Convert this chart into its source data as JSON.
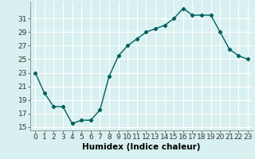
{
  "x": [
    0,
    1,
    2,
    3,
    4,
    5,
    6,
    7,
    8,
    9,
    10,
    11,
    12,
    13,
    14,
    15,
    16,
    17,
    18,
    19,
    20,
    21,
    22,
    23
  ],
  "y": [
    23,
    20,
    18,
    18,
    15.5,
    16,
    16,
    17.5,
    22.5,
    25.5,
    27,
    28,
    29,
    29.5,
    30,
    31,
    32.5,
    31.5,
    31.5,
    31.5,
    29,
    26.5,
    25.5,
    25
  ],
  "line_color": "#006060",
  "marker": "D",
  "marker_size": 2.2,
  "bg_color": "#d8f0f0",
  "grid_color": "#b0d8d8",
  "xlabel": "Humidex (Indice chaleur)",
  "xlim": [
    -0.5,
    23.5
  ],
  "ylim": [
    14.5,
    33.5
  ],
  "yticks": [
    15,
    17,
    19,
    21,
    23,
    25,
    27,
    29,
    31
  ],
  "xtick_labels": [
    "0",
    "1",
    "2",
    "3",
    "4",
    "5",
    "6",
    "7",
    "8",
    "9",
    "10",
    "11",
    "12",
    "13",
    "14",
    "15",
    "16",
    "17",
    "18",
    "19",
    "20",
    "21",
    "22",
    "23"
  ],
  "font_size_axis": 6.5,
  "font_size_xlabel": 7.5
}
